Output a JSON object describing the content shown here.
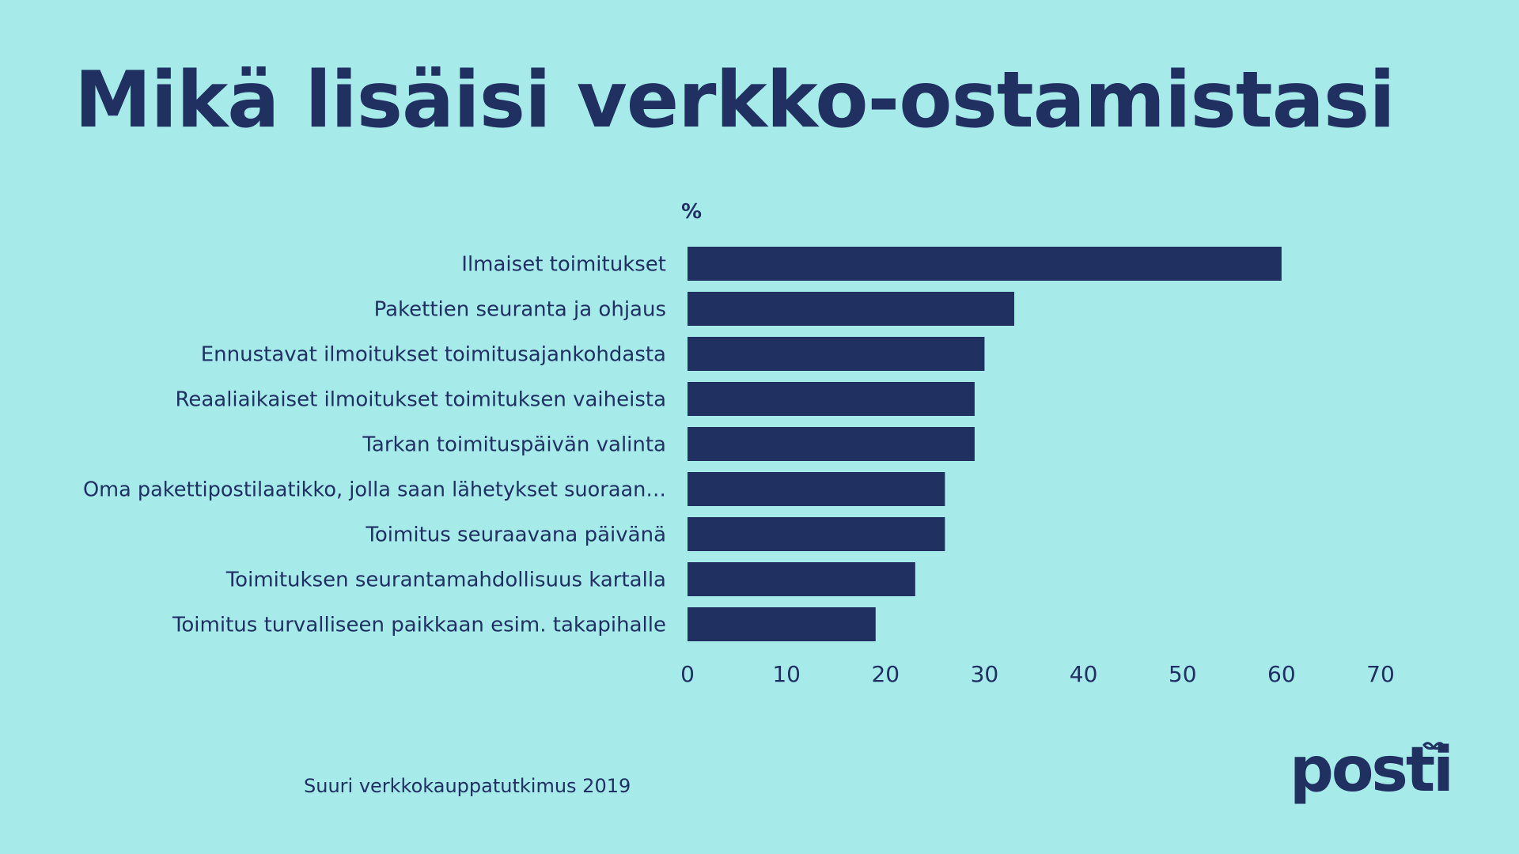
{
  "colors": {
    "background": "#a6eaea",
    "bar": "#1f3061",
    "text": "#1f3061"
  },
  "slide": {
    "title": "Mikä lisäisi verkko-ostamistasi",
    "source": "Suuri verkkokauppatutkimus 2019"
  },
  "logo": {
    "text": "posti",
    "icon": "posti-logo-icon"
  },
  "chart_data": {
    "type": "bar",
    "orientation": "horizontal",
    "title": "Mikä lisäisi verkko-ostamistasi",
    "unit_label": "%",
    "xlabel": "",
    "ylabel": "",
    "xlim": [
      0,
      70
    ],
    "ticks": [
      0,
      10,
      20,
      30,
      40,
      50,
      60,
      70
    ],
    "categories": [
      "Ilmaiset toimitukset",
      "Pakettien seuranta ja ohjaus",
      "Ennustavat ilmoitukset toimitusajankohdasta",
      "Reaaliaikaiset ilmoitukset toimituksen vaiheista",
      "Tarkan toimituspäivän valinta",
      "Oma pakettipostilaatikko, jolla saan lähetykset suoraan…",
      "Toimitus seuraavana päivänä",
      "Toimituksen seurantamahdollisuus kartalla",
      "Toimitus turvalliseen paikkaan esim. takapihalle"
    ],
    "values": [
      60,
      33,
      30,
      29,
      29,
      26,
      26,
      23,
      19
    ],
    "grid": false,
    "legend": "none"
  }
}
